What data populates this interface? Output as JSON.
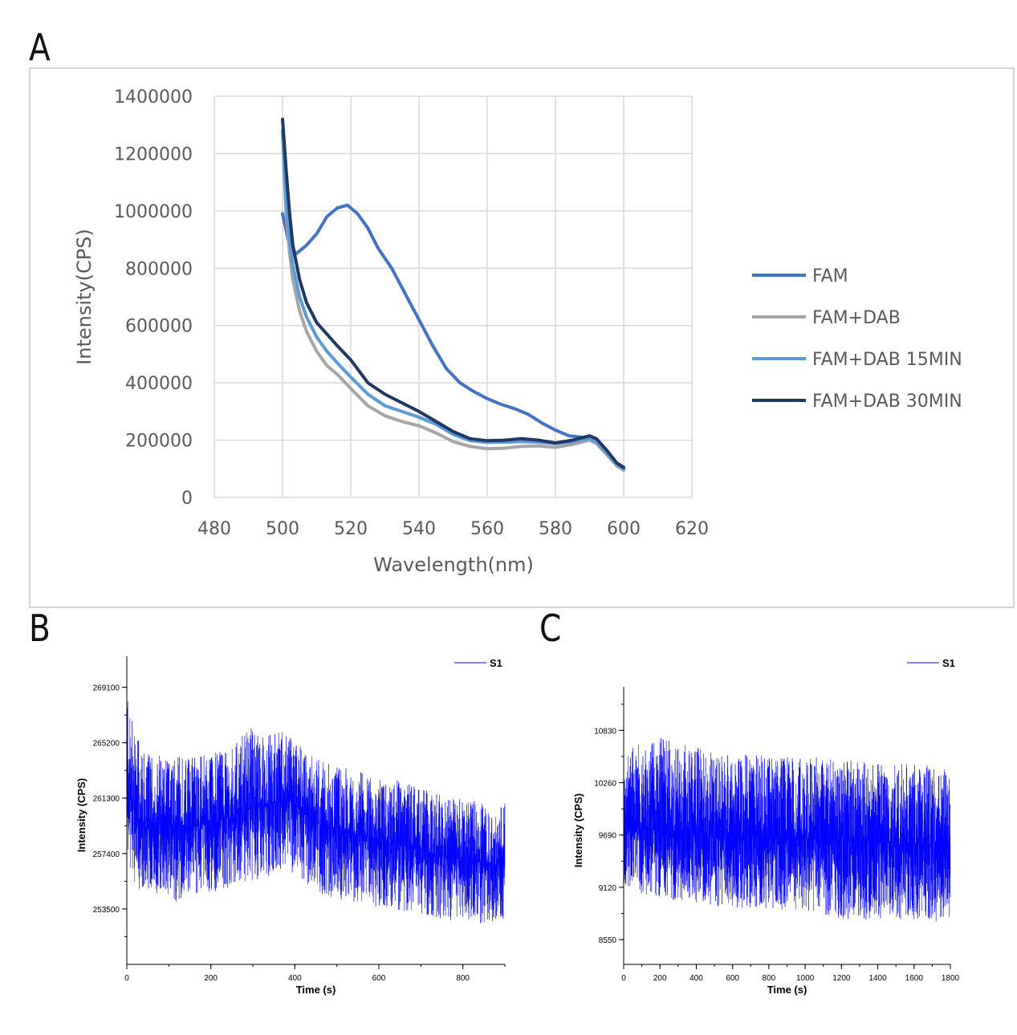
{
  "panels": {
    "a": "A",
    "b": "B",
    "c": "C"
  },
  "chart_data": [
    {
      "type": "line",
      "panel": "A",
      "xlabel": "Wavelength(nm)",
      "ylabel": "Intensity(CPS)",
      "xlim": [
        480,
        620
      ],
      "ylim": [
        0,
        1400000
      ],
      "xticks": [
        480,
        500,
        520,
        540,
        560,
        580,
        600,
        620
      ],
      "yticks": [
        0,
        200000,
        400000,
        600000,
        800000,
        1000000,
        1200000,
        1400000
      ],
      "xtick_labels": [
        "480",
        "500",
        "520",
        "540",
        "560",
        "580",
        "600",
        "620"
      ],
      "ytick_labels": [
        "0",
        "200000",
        "400000",
        "600000",
        "800000",
        "1000000",
        "1200000",
        "1400000"
      ],
      "grid": true,
      "legend_position": "right",
      "series": [
        {
          "name": "FAM",
          "color": "#4472c4",
          "x": [
            500,
            502,
            504,
            507,
            510,
            513,
            516,
            519,
            522,
            525,
            528,
            532,
            536,
            540,
            544,
            548,
            552,
            556,
            560,
            564,
            568,
            572,
            576,
            580,
            584,
            588,
            590,
            592,
            594,
            596,
            598,
            600
          ],
          "y": [
            990000,
            880000,
            850000,
            880000,
            920000,
            980000,
            1010000,
            1020000,
            990000,
            940000,
            870000,
            800000,
            710000,
            620000,
            530000,
            450000,
            400000,
            370000,
            345000,
            325000,
            310000,
            290000,
            260000,
            235000,
            215000,
            210000,
            210000,
            200000,
            175000,
            145000,
            115000,
            100000
          ]
        },
        {
          "name": "FAM+DAB",
          "color": "#a5a5a5",
          "x": [
            500,
            501,
            502,
            503,
            505,
            507,
            510,
            513,
            516,
            520,
            525,
            530,
            535,
            540,
            545,
            550,
            555,
            560,
            565,
            570,
            575,
            580,
            585,
            590,
            592,
            595,
            598,
            600
          ],
          "y": [
            1270000,
            1000000,
            860000,
            760000,
            650000,
            580000,
            510000,
            460000,
            430000,
            380000,
            320000,
            285000,
            265000,
            250000,
            225000,
            195000,
            178000,
            170000,
            172000,
            178000,
            180000,
            175000,
            185000,
            200000,
            188000,
            150000,
            110000,
            95000
          ]
        },
        {
          "name": "FAM+DAB 15MIN",
          "color": "#5b9bd5",
          "x": [
            500,
            501,
            502,
            503,
            505,
            507,
            510,
            513,
            516,
            520,
            525,
            530,
            535,
            540,
            545,
            550,
            555,
            560,
            565,
            570,
            575,
            580,
            585,
            590,
            592,
            595,
            598,
            600
          ],
          "y": [
            1280000,
            1030000,
            900000,
            810000,
            700000,
            630000,
            560000,
            510000,
            470000,
            420000,
            360000,
            320000,
            300000,
            280000,
            255000,
            220000,
            198000,
            192000,
            193000,
            195000,
            193000,
            188000,
            195000,
            205000,
            195000,
            155000,
            115000,
            100000
          ]
        },
        {
          "name": "FAM+DAB 30MIN",
          "color": "#203864",
          "x": [
            500,
            501,
            502,
            503,
            505,
            507,
            510,
            513,
            516,
            520,
            525,
            530,
            535,
            540,
            545,
            550,
            555,
            560,
            565,
            570,
            575,
            580,
            585,
            590,
            592,
            595,
            598,
            600
          ],
          "y": [
            1320000,
            1150000,
            1000000,
            880000,
            760000,
            680000,
            610000,
            570000,
            530000,
            480000,
            400000,
            360000,
            330000,
            300000,
            265000,
            230000,
            205000,
            198000,
            200000,
            205000,
            200000,
            190000,
            200000,
            215000,
            205000,
            165000,
            120000,
            105000
          ]
        }
      ]
    },
    {
      "type": "line",
      "panel": "B",
      "xlabel": "Time (s)",
      "ylabel": "Intensity (CPS)",
      "xlim": [
        0,
        900
      ],
      "ylim": [
        249600,
        270600
      ],
      "xticks": [
        0,
        200,
        400,
        600,
        800
      ],
      "yticks": [
        253500,
        257400,
        261300,
        265200,
        269100
      ],
      "xtick_labels": [
        "0",
        "200",
        "400",
        "600",
        "800"
      ],
      "ytick_labels": [
        "253500",
        "257400",
        "261300",
        "265200",
        "269100"
      ],
      "legend_position": "top-right",
      "series": [
        {
          "name": "S1",
          "color": "#0000ff",
          "x": [
            0,
            5,
            10,
            20,
            30,
            50,
            80,
            120,
            160,
            200,
            240,
            280,
            320,
            360,
            380,
            400,
            420,
            440,
            480,
            520,
            560,
            600,
            640,
            680,
            720,
            760,
            800,
            840,
            880,
            900
          ],
          "y_mean": [
            263500,
            262000,
            261000,
            260300,
            259800,
            259600,
            259500,
            259400,
            259300,
            259500,
            259900,
            260400,
            260800,
            261000,
            261100,
            260900,
            260200,
            259700,
            259200,
            258900,
            258700,
            258500,
            258200,
            257800,
            257500,
            257200,
            257000,
            256800,
            256600,
            256500
          ],
          "y_min": [
            258000,
            257000,
            256000,
            255000,
            254800,
            254500,
            254300,
            254000,
            254500,
            254600,
            255000,
            255400,
            255600,
            256000,
            256200,
            256000,
            255300,
            254800,
            254300,
            254000,
            253800,
            253600,
            253400,
            253100,
            252900,
            252700,
            252600,
            252500,
            252600,
            252800
          ],
          "y_max": [
            269500,
            268800,
            267500,
            266200,
            265400,
            264500,
            264300,
            264200,
            264400,
            264500,
            265000,
            266500,
            265800,
            265900,
            266000,
            265500,
            264800,
            264400,
            263900,
            263500,
            263200,
            263000,
            262600,
            262200,
            261800,
            261500,
            261200,
            261000,
            260900,
            261000
          ]
        }
      ]
    },
    {
      "type": "line",
      "panel": "C",
      "xlabel": "Time (s)",
      "ylabel": "Intensity (CPS)",
      "xlim": [
        0,
        1800
      ],
      "ylim": [
        8280,
        11200
      ],
      "xticks": [
        0,
        200,
        400,
        600,
        800,
        1000,
        1200,
        1400,
        1600,
        1800
      ],
      "yticks": [
        8550,
        9120,
        9690,
        10260,
        10830
      ],
      "xtick_labels": [
        "0",
        "200",
        "400",
        "600",
        "800",
        "1000",
        "1200",
        "1400",
        "1600",
        "1800"
      ],
      "ytick_labels": [
        "8550",
        "9120",
        "9690",
        "10260",
        "10830"
      ],
      "legend_position": "top-right",
      "series": [
        {
          "name": "S1",
          "color": "#0000ff",
          "x": [
            0,
            100,
            200,
            300,
            400,
            500,
            600,
            700,
            800,
            900,
            1000,
            1100,
            1200,
            1300,
            1400,
            1500,
            1600,
            1700,
            1800
          ],
          "y_mean": [
            9780,
            9770,
            9760,
            9740,
            9730,
            9710,
            9700,
            9690,
            9680,
            9670,
            9660,
            9650,
            9640,
            9630,
            9620,
            9610,
            9600,
            9590,
            9580
          ],
          "y_min": [
            9150,
            9050,
            9000,
            8980,
            8950,
            8920,
            8900,
            8890,
            8880,
            8870,
            8850,
            8800,
            8780,
            8770,
            8760,
            8750,
            8740,
            8730,
            8720
          ],
          "y_max": [
            10600,
            10700,
            10750,
            10700,
            10650,
            10600,
            10580,
            10560,
            10550,
            10550,
            10540,
            10530,
            10520,
            10500,
            10490,
            10480,
            10470,
            10460,
            10450
          ]
        }
      ]
    }
  ]
}
